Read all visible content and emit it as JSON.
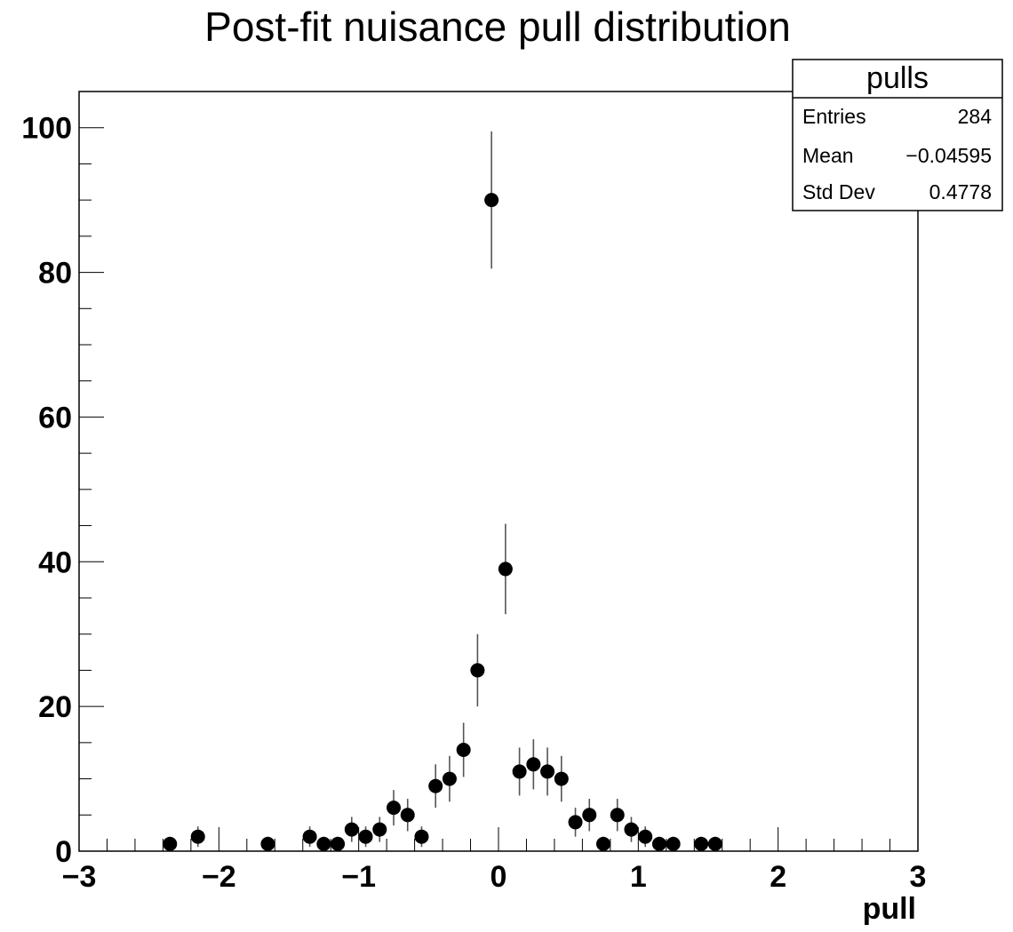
{
  "chart_data": {
    "type": "scatter",
    "title": "Post-fit nuisance pull distribution",
    "xlabel": "pull",
    "ylabel": "",
    "xlim": [
      -3,
      3
    ],
    "ylim": [
      0,
      105
    ],
    "x_ticks": [
      "−3",
      "−2",
      "−1",
      "0",
      "1",
      "2",
      "3"
    ],
    "y_ticks": [
      "0",
      "20",
      "40",
      "60",
      "80",
      "100"
    ],
    "bin_width": 0.1,
    "series": [
      {
        "points": [
          {
            "x": -2.35,
            "y": 1
          },
          {
            "x": -2.15,
            "y": 2
          },
          {
            "x": -1.65,
            "y": 1
          },
          {
            "x": -1.35,
            "y": 2
          },
          {
            "x": -1.25,
            "y": 1
          },
          {
            "x": -1.15,
            "y": 1
          },
          {
            "x": -1.05,
            "y": 3
          },
          {
            "x": -0.95,
            "y": 2
          },
          {
            "x": -0.85,
            "y": 3
          },
          {
            "x": -0.75,
            "y": 6
          },
          {
            "x": -0.65,
            "y": 5
          },
          {
            "x": -0.55,
            "y": 2
          },
          {
            "x": -0.45,
            "y": 9
          },
          {
            "x": -0.35,
            "y": 10
          },
          {
            "x": -0.25,
            "y": 14
          },
          {
            "x": -0.15,
            "y": 25
          },
          {
            "x": -0.05,
            "y": 90
          },
          {
            "x": 0.05,
            "y": 39
          },
          {
            "x": 0.15,
            "y": 11
          },
          {
            "x": 0.25,
            "y": 12
          },
          {
            "x": 0.35,
            "y": 11
          },
          {
            "x": 0.45,
            "y": 10
          },
          {
            "x": 0.55,
            "y": 4
          },
          {
            "x": 0.65,
            "y": 5
          },
          {
            "x": 0.75,
            "y": 1
          },
          {
            "x": 0.85,
            "y": 5
          },
          {
            "x": 0.95,
            "y": 3
          },
          {
            "x": 1.05,
            "y": 2
          },
          {
            "x": 1.15,
            "y": 1
          },
          {
            "x": 1.25,
            "y": 1
          },
          {
            "x": 1.45,
            "y": 1
          },
          {
            "x": 1.55,
            "y": 1
          }
        ]
      }
    ],
    "error_bars": "sqrt(N)",
    "marker_color": "#000000",
    "grid": false,
    "stats_box": {
      "name": "pulls",
      "rows": [
        {
          "label": "Entries",
          "value": "284"
        },
        {
          "label": "Mean",
          "value": "−0.04595"
        },
        {
          "label": "Std Dev",
          "value": "0.4778"
        }
      ]
    }
  }
}
